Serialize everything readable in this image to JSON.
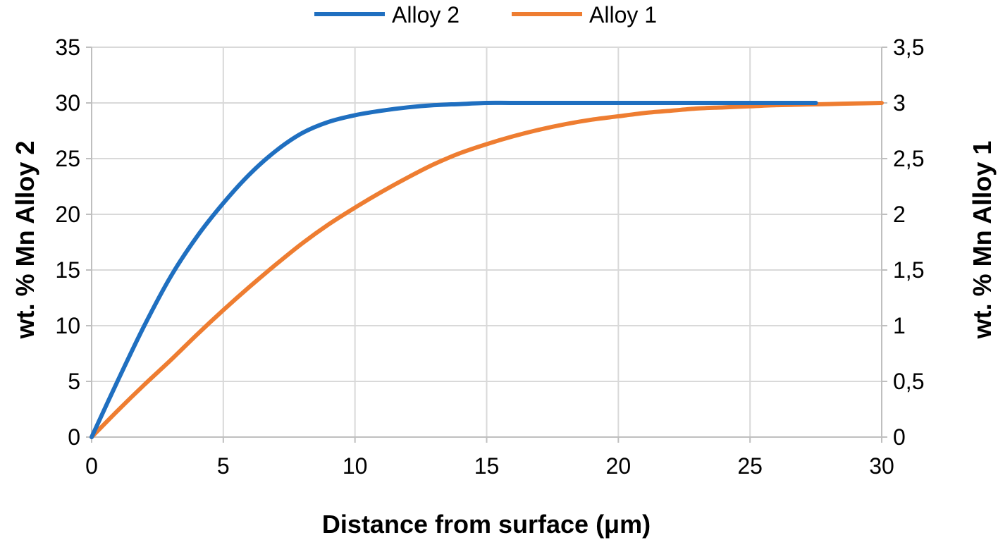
{
  "chart_data": {
    "type": "line",
    "title": "",
    "xlabel": "Distance from surface (μm)",
    "ylabel_left": "wt. % Mn Alloy 2",
    "ylabel_right": "wt. % Mn Alloy 1",
    "xlim": [
      0,
      30
    ],
    "ylim_left": [
      0,
      35
    ],
    "ylim_right": [
      0,
      3.5
    ],
    "x_ticks": [
      "0",
      "5",
      "10",
      "15",
      "20",
      "25",
      "30"
    ],
    "y_left_ticks": [
      "0",
      "5",
      "10",
      "15",
      "20",
      "25",
      "30",
      "35"
    ],
    "y_right_ticks": [
      "0",
      "0,5",
      "1",
      "1,5",
      "2",
      "2,5",
      "3",
      "3,5"
    ],
    "grid": true,
    "legend_position": "top",
    "series": [
      {
        "name": "Alloy 2",
        "axis": "left",
        "color": "#1f6fc0",
        "x": [
          0,
          1,
          2,
          3,
          4,
          5,
          6,
          7,
          8,
          9,
          10,
          11,
          12,
          13,
          14,
          15,
          16,
          18,
          20,
          22,
          24,
          26,
          27.5
        ],
        "y": [
          0,
          5.1,
          10.0,
          14.4,
          18.0,
          21.0,
          23.6,
          25.7,
          27.3,
          28.3,
          28.9,
          29.3,
          29.6,
          29.8,
          29.9,
          30.0,
          30.0,
          30.0,
          30.0,
          30.0,
          30.0,
          30.0,
          30.0
        ]
      },
      {
        "name": "Alloy 1",
        "axis": "right",
        "color": "#ee7d31",
        "x": [
          0,
          1,
          2,
          3,
          4,
          5,
          6,
          7,
          8,
          9,
          10,
          11,
          12,
          13,
          14,
          15,
          16,
          17,
          18,
          19,
          20,
          21,
          22,
          23,
          24,
          25,
          26,
          27,
          28,
          29,
          30
        ],
        "y": [
          0,
          0.24,
          0.47,
          0.69,
          0.92,
          1.14,
          1.35,
          1.55,
          1.74,
          1.91,
          2.06,
          2.2,
          2.33,
          2.45,
          2.55,
          2.63,
          2.7,
          2.76,
          2.81,
          2.85,
          2.88,
          2.91,
          2.93,
          2.95,
          2.96,
          2.97,
          2.98,
          2.985,
          2.99,
          2.995,
          3.0
        ]
      }
    ]
  },
  "colors": {
    "grid": "#d9d9d9",
    "axis": "#bfbfbf"
  }
}
